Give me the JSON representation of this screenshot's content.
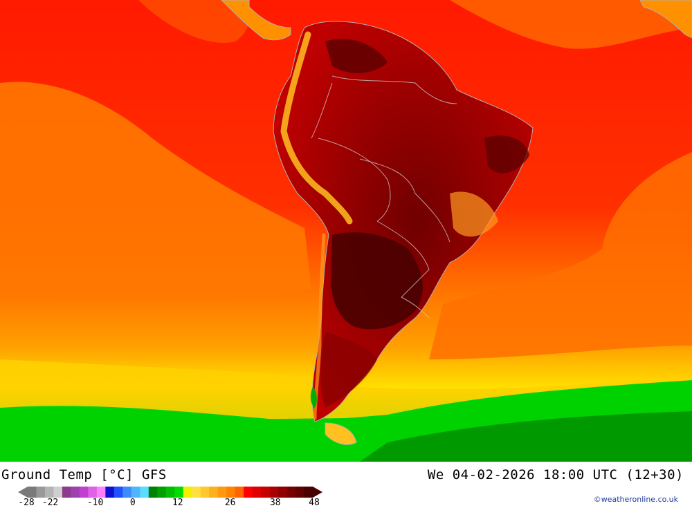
{
  "title_left": "Ground Temp [°C] GFS",
  "title_right": "We 04-02-2026 18:00 UTC (12+30)",
  "credit": "©weatheronline.co.uk",
  "legend": {
    "ticks": [
      {
        "label": "-28",
        "value": -28
      },
      {
        "label": "-22",
        "value": -22
      },
      {
        "label": "-10",
        "value": -10
      },
      {
        "label": "0",
        "value": 0
      },
      {
        "label": "12",
        "value": 12
      },
      {
        "label": "26",
        "value": 26
      },
      {
        "label": "38",
        "value": 38
      },
      {
        "label": "48",
        "value": 48
      }
    ],
    "colors": [
      "#7a7a7a",
      "#999999",
      "#b4b4b4",
      "#cfcfcf",
      "#8c3c8c",
      "#a040b0",
      "#c040d0",
      "#e060e8",
      "#ff80ff",
      "#1010d0",
      "#2050ff",
      "#3c8cff",
      "#50b4ff",
      "#5adcff",
      "#008200",
      "#00a000",
      "#00be00",
      "#00dc00",
      "#f0f000",
      "#ffe040",
      "#ffc830",
      "#ffb020",
      "#ff9a10",
      "#ff8200",
      "#ff6400",
      "#ff0000",
      "#e00000",
      "#c80000",
      "#aa0000",
      "#900000",
      "#780000",
      "#600000",
      "#480000"
    ],
    "map_colors": {
      "warm_ocean": "#ff2000",
      "orange": "#ff7800",
      "yellow": "#ffd800",
      "green": "#00dc00",
      "dark_green": "#008c00",
      "land_hot": "#8c0000",
      "land_hottest": "#460000",
      "andes": "#ffc020",
      "border": "#b0b0b0"
    }
  }
}
